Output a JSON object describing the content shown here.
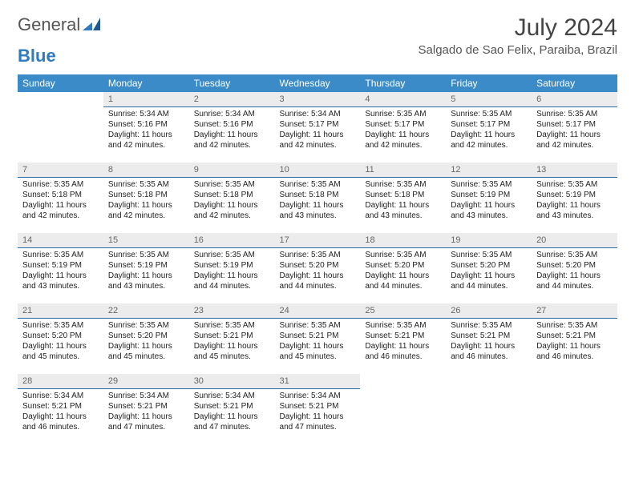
{
  "brand": {
    "part1": "General",
    "part2": "Blue"
  },
  "title": "July 2024",
  "location": "Salgado de Sao Felix, Paraiba, Brazil",
  "colors": {
    "header_bg": "#3b8bc9",
    "header_text": "#ffffff",
    "daynum_bg": "#ececec",
    "daynum_border": "#2f6fa8",
    "brand_gray": "#555555",
    "brand_blue": "#2f7bbf"
  },
  "weekdays": [
    "Sunday",
    "Monday",
    "Tuesday",
    "Wednesday",
    "Thursday",
    "Friday",
    "Saturday"
  ],
  "first_day_index": 1,
  "num_days": 31,
  "days": {
    "1": {
      "sunrise": "5:34 AM",
      "sunset": "5:16 PM",
      "daylight": "11 hours and 42 minutes."
    },
    "2": {
      "sunrise": "5:34 AM",
      "sunset": "5:16 PM",
      "daylight": "11 hours and 42 minutes."
    },
    "3": {
      "sunrise": "5:34 AM",
      "sunset": "5:17 PM",
      "daylight": "11 hours and 42 minutes."
    },
    "4": {
      "sunrise": "5:35 AM",
      "sunset": "5:17 PM",
      "daylight": "11 hours and 42 minutes."
    },
    "5": {
      "sunrise": "5:35 AM",
      "sunset": "5:17 PM",
      "daylight": "11 hours and 42 minutes."
    },
    "6": {
      "sunrise": "5:35 AM",
      "sunset": "5:17 PM",
      "daylight": "11 hours and 42 minutes."
    },
    "7": {
      "sunrise": "5:35 AM",
      "sunset": "5:18 PM",
      "daylight": "11 hours and 42 minutes."
    },
    "8": {
      "sunrise": "5:35 AM",
      "sunset": "5:18 PM",
      "daylight": "11 hours and 42 minutes."
    },
    "9": {
      "sunrise": "5:35 AM",
      "sunset": "5:18 PM",
      "daylight": "11 hours and 42 minutes."
    },
    "10": {
      "sunrise": "5:35 AM",
      "sunset": "5:18 PM",
      "daylight": "11 hours and 43 minutes."
    },
    "11": {
      "sunrise": "5:35 AM",
      "sunset": "5:18 PM",
      "daylight": "11 hours and 43 minutes."
    },
    "12": {
      "sunrise": "5:35 AM",
      "sunset": "5:19 PM",
      "daylight": "11 hours and 43 minutes."
    },
    "13": {
      "sunrise": "5:35 AM",
      "sunset": "5:19 PM",
      "daylight": "11 hours and 43 minutes."
    },
    "14": {
      "sunrise": "5:35 AM",
      "sunset": "5:19 PM",
      "daylight": "11 hours and 43 minutes."
    },
    "15": {
      "sunrise": "5:35 AM",
      "sunset": "5:19 PM",
      "daylight": "11 hours and 43 minutes."
    },
    "16": {
      "sunrise": "5:35 AM",
      "sunset": "5:19 PM",
      "daylight": "11 hours and 44 minutes."
    },
    "17": {
      "sunrise": "5:35 AM",
      "sunset": "5:20 PM",
      "daylight": "11 hours and 44 minutes."
    },
    "18": {
      "sunrise": "5:35 AM",
      "sunset": "5:20 PM",
      "daylight": "11 hours and 44 minutes."
    },
    "19": {
      "sunrise": "5:35 AM",
      "sunset": "5:20 PM",
      "daylight": "11 hours and 44 minutes."
    },
    "20": {
      "sunrise": "5:35 AM",
      "sunset": "5:20 PM",
      "daylight": "11 hours and 44 minutes."
    },
    "21": {
      "sunrise": "5:35 AM",
      "sunset": "5:20 PM",
      "daylight": "11 hours and 45 minutes."
    },
    "22": {
      "sunrise": "5:35 AM",
      "sunset": "5:20 PM",
      "daylight": "11 hours and 45 minutes."
    },
    "23": {
      "sunrise": "5:35 AM",
      "sunset": "5:21 PM",
      "daylight": "11 hours and 45 minutes."
    },
    "24": {
      "sunrise": "5:35 AM",
      "sunset": "5:21 PM",
      "daylight": "11 hours and 45 minutes."
    },
    "25": {
      "sunrise": "5:35 AM",
      "sunset": "5:21 PM",
      "daylight": "11 hours and 46 minutes."
    },
    "26": {
      "sunrise": "5:35 AM",
      "sunset": "5:21 PM",
      "daylight": "11 hours and 46 minutes."
    },
    "27": {
      "sunrise": "5:35 AM",
      "sunset": "5:21 PM",
      "daylight": "11 hours and 46 minutes."
    },
    "28": {
      "sunrise": "5:34 AM",
      "sunset": "5:21 PM",
      "daylight": "11 hours and 46 minutes."
    },
    "29": {
      "sunrise": "5:34 AM",
      "sunset": "5:21 PM",
      "daylight": "11 hours and 47 minutes."
    },
    "30": {
      "sunrise": "5:34 AM",
      "sunset": "5:21 PM",
      "daylight": "11 hours and 47 minutes."
    },
    "31": {
      "sunrise": "5:34 AM",
      "sunset": "5:21 PM",
      "daylight": "11 hours and 47 minutes."
    }
  },
  "labels": {
    "sunrise": "Sunrise:",
    "sunset": "Sunset:",
    "daylight": "Daylight:"
  }
}
